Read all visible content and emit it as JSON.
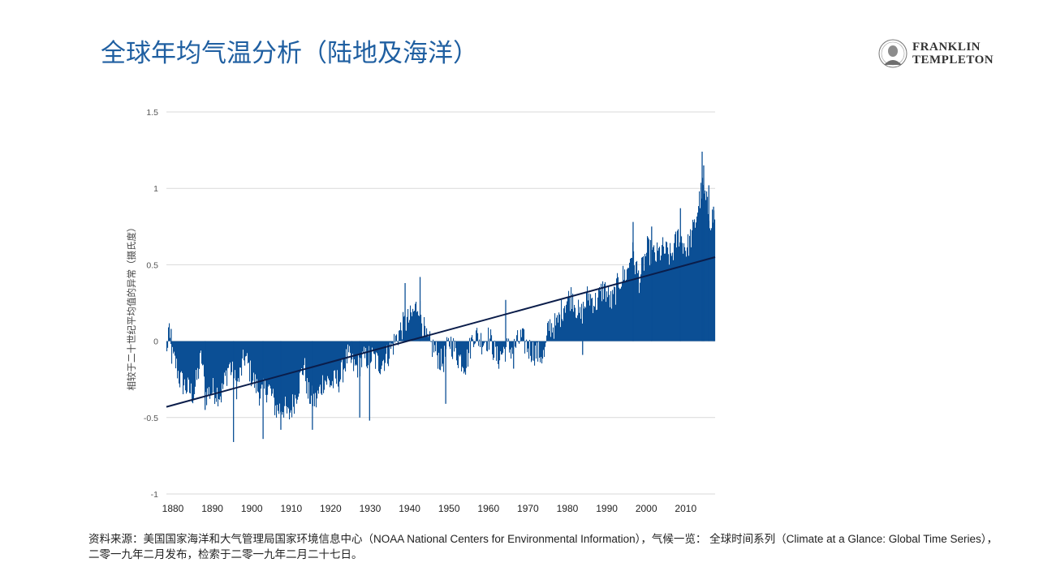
{
  "page": {
    "title": "全球年均气温分析（陆地及海洋）",
    "source_note": "资料来源：美国国家海洋和大气管理局国家环境信息中心（NOAA National Centers for Environmental Information），气候一览： 全球时间系列（Climate at a Glance: Global Time Series），二零一九年二月发布，检索于二零一九年二月二十七日。"
  },
  "logo": {
    "line1": "FRANKLIN",
    "line2": "TEMPLETON"
  },
  "colors": {
    "title": "#1f5fa1",
    "bar": "#0b4f95",
    "trend": "#0b1d4a",
    "grid": "#d9d9d9"
  },
  "chart_data": {
    "type": "bar",
    "ylabel": "相较于二十世纪平均值的异常（摄氏度）",
    "ylim": [
      -1,
      1.5
    ],
    "yticks": [
      1.5,
      1,
      0.5,
      0,
      -0.5,
      -1
    ],
    "ytick_labels": [
      "1.5",
      "1",
      "0.5",
      "0",
      "-0.5",
      "-1"
    ],
    "xlim": [
      1880,
      2019.1
    ],
    "xticks": [
      1880,
      1890,
      1900,
      1910,
      1920,
      1930,
      1940,
      1950,
      1960,
      1970,
      1980,
      1990,
      2000,
      2010
    ],
    "xtick_labels": [
      "1880",
      "1890",
      "1900",
      "1910",
      "1920",
      "1930",
      "1940",
      "1950",
      "1960",
      "1970",
      "1980",
      "1990",
      "2000",
      "2010"
    ],
    "anchors": [
      [
        1880.0,
        -0.18
      ],
      [
        1880.6,
        0.07
      ],
      [
        1881.5,
        -0.1
      ],
      [
        1882.5,
        -0.15
      ],
      [
        1883.5,
        -0.25
      ],
      [
        1885.0,
        -0.3
      ],
      [
        1887.0,
        -0.35
      ],
      [
        1889.0,
        -0.1
      ],
      [
        1890.0,
        -0.35
      ],
      [
        1892.0,
        -0.32
      ],
      [
        1894.0,
        -0.35
      ],
      [
        1896.0,
        -0.15
      ],
      [
        1898.0,
        -0.3
      ],
      [
        1900.0,
        -0.1
      ],
      [
        1902.0,
        -0.25
      ],
      [
        1904.0,
        -0.35
      ],
      [
        1906.0,
        -0.3
      ],
      [
        1908.0,
        -0.45
      ],
      [
        1910.0,
        -0.43
      ],
      [
        1911.0,
        -0.5
      ],
      [
        1913.0,
        -0.35
      ],
      [
        1915.0,
        -0.15
      ],
      [
        1916.0,
        -0.35
      ],
      [
        1918.0,
        -0.4
      ],
      [
        1920.0,
        -0.25
      ],
      [
        1922.0,
        -0.28
      ],
      [
        1924.0,
        -0.25
      ],
      [
        1926.0,
        -0.1
      ],
      [
        1928.0,
        -0.18
      ],
      [
        1930.0,
        -0.12
      ],
      [
        1932.0,
        -0.1
      ],
      [
        1934.0,
        -0.15
      ],
      [
        1936.0,
        -0.1
      ],
      [
        1938.0,
        0.0
      ],
      [
        1940.0,
        0.1
      ],
      [
        1942.0,
        0.15
      ],
      [
        1944.0,
        0.25
      ],
      [
        1946.0,
        0.0
      ],
      [
        1948.0,
        -0.05
      ],
      [
        1950.0,
        -0.15
      ],
      [
        1952.0,
        0.0
      ],
      [
        1954.0,
        -0.1
      ],
      [
        1956.0,
        -0.15
      ],
      [
        1958.0,
        0.05
      ],
      [
        1960.0,
        0.0
      ],
      [
        1962.0,
        0.02
      ],
      [
        1964.0,
        -0.12
      ],
      [
        1966.0,
        -0.05
      ],
      [
        1968.0,
        -0.05
      ],
      [
        1970.0,
        0.02
      ],
      [
        1972.0,
        -0.05
      ],
      [
        1974.0,
        -0.08
      ],
      [
        1976.0,
        -0.1
      ],
      [
        1977.0,
        0.1
      ],
      [
        1979.0,
        0.1
      ],
      [
        1981.0,
        0.25
      ],
      [
        1983.0,
        0.3
      ],
      [
        1985.0,
        0.15
      ],
      [
        1987.0,
        0.3
      ],
      [
        1989.0,
        0.25
      ],
      [
        1991.0,
        0.35
      ],
      [
        1993.0,
        0.25
      ],
      [
        1995.0,
        0.4
      ],
      [
        1997.0,
        0.45
      ],
      [
        1998.0,
        0.6
      ],
      [
        2000.0,
        0.4
      ],
      [
        2002.0,
        0.6
      ],
      [
        2004.0,
        0.55
      ],
      [
        2006.0,
        0.6
      ],
      [
        2008.0,
        0.55
      ],
      [
        2010.0,
        0.7
      ],
      [
        2012.0,
        0.6
      ],
      [
        2014.0,
        0.75
      ],
      [
        2015.0,
        0.9
      ],
      [
        2016.0,
        1.0
      ],
      [
        2017.0,
        0.9
      ],
      [
        2018.0,
        0.8
      ],
      [
        2019.1,
        0.82
      ]
    ],
    "spikes": [
      [
        1881.2,
        0.08
      ],
      [
        1889.8,
        -0.45
      ],
      [
        1897.0,
        -0.66
      ],
      [
        1904.5,
        -0.64
      ],
      [
        1909.0,
        -0.58
      ],
      [
        1917.0,
        -0.58
      ],
      [
        1927.0,
        -0.12
      ],
      [
        1929.0,
        -0.5
      ],
      [
        1931.5,
        -0.52
      ],
      [
        1940.5,
        0.38
      ],
      [
        1944.3,
        0.42
      ],
      [
        1950.8,
        -0.41
      ],
      [
        1966.0,
        0.27
      ],
      [
        1968.0,
        -0.18
      ],
      [
        1985.5,
        -0.09
      ],
      [
        1998.3,
        0.78
      ],
      [
        2003.0,
        0.75
      ],
      [
        2010.3,
        0.87
      ],
      [
        2015.8,
        1.24
      ],
      [
        2016.2,
        1.15
      ],
      [
        2017.5,
        1.02
      ],
      [
        2018.7,
        0.88
      ]
    ],
    "trend": {
      "x": [
        1880,
        2019.1
      ],
      "y": [
        -0.43,
        0.55
      ]
    }
  }
}
